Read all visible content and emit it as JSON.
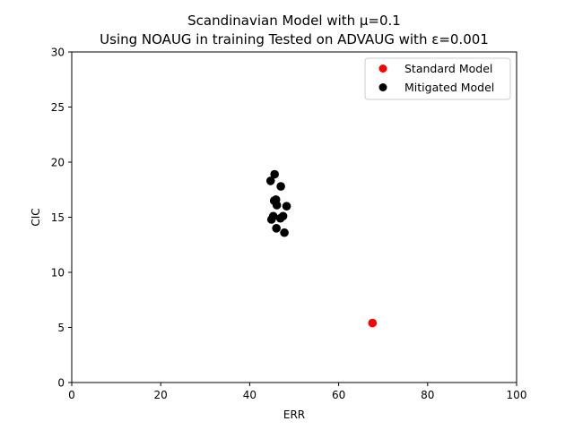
{
  "chart_data": {
    "type": "scatter",
    "title": "Scandinavian Model with μ=0.1",
    "subtitle": "Using NOAUG in training Tested on ADVAUG with ε=0.001",
    "xlabel": "ERR",
    "ylabel": "CIC",
    "xlim": [
      0,
      100
    ],
    "ylim": [
      0,
      30
    ],
    "xticks": [
      0,
      20,
      40,
      60,
      80,
      100
    ],
    "yticks": [
      0,
      5,
      10,
      15,
      20,
      25,
      30
    ],
    "grid": false,
    "legend_position": "top-right",
    "series": [
      {
        "name": "Standard Model",
        "color": "#ff0000",
        "points": [
          [
            67.6,
            5.4
          ]
        ]
      },
      {
        "name": "Mitigated Model",
        "color": "#000000",
        "points": [
          [
            45.6,
            18.9
          ],
          [
            44.7,
            18.3
          ],
          [
            47.0,
            17.8
          ],
          [
            45.5,
            16.5
          ],
          [
            45.9,
            16.6
          ],
          [
            46.1,
            16.1
          ],
          [
            48.3,
            16.0
          ],
          [
            45.3,
            15.1
          ],
          [
            44.9,
            14.8
          ],
          [
            46.9,
            14.9
          ],
          [
            47.5,
            15.1
          ],
          [
            46.0,
            14.0
          ],
          [
            47.8,
            13.6
          ]
        ]
      }
    ]
  }
}
